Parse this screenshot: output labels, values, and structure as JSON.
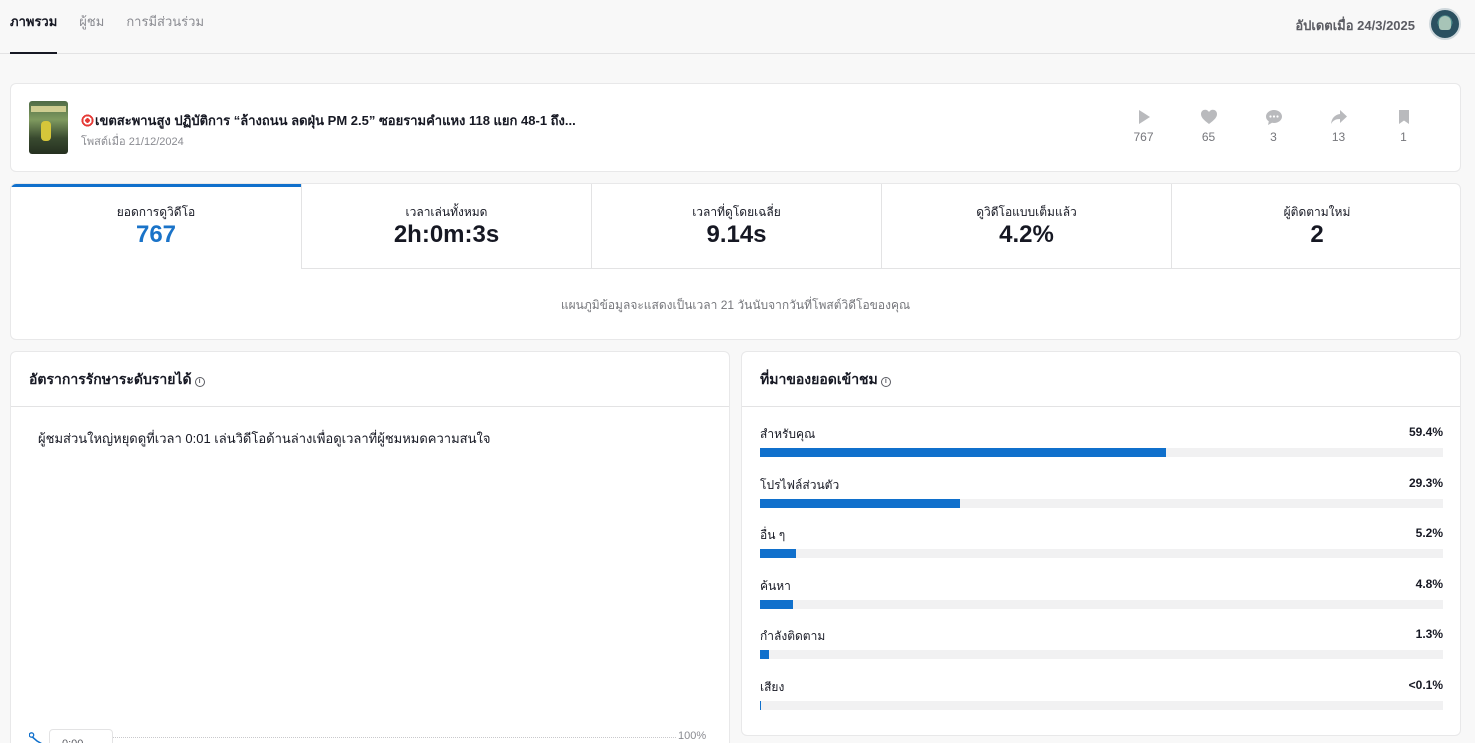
{
  "nav": {
    "tabs": [
      "ภาพรวม",
      "ผู้ชม",
      "การมีส่วนร่วม"
    ],
    "active_tab": 0,
    "updated": "อัปเดตเมื่อ 24/3/2025"
  },
  "video": {
    "title": "เขตสะพานสูง ปฏิบัติการ “ล้างถนน ลดฝุ่น PM 2.5” ซอยรามคำแหง 118 แยก 48-1 ถึง...",
    "posted": "โพสต์เมื่อ 21/12/2024",
    "stats": [
      {
        "icon": "play-icon",
        "value": "767"
      },
      {
        "icon": "heart-icon",
        "value": "65"
      },
      {
        "icon": "comment-icon",
        "value": "3"
      },
      {
        "icon": "share-icon",
        "value": "13"
      },
      {
        "icon": "bookmark-icon",
        "value": "1"
      }
    ]
  },
  "metrics": [
    {
      "label": "ยอดการดูวิดีโอ",
      "value": "767"
    },
    {
      "label": "เวลาเล่นทั้งหมด",
      "value": "2h:0m:3s"
    },
    {
      "label": "เวลาที่ดูโดยเฉลี่ย",
      "value": "9.14s"
    },
    {
      "label": "ดูวิดีโอแบบเต็มแล้ว",
      "value": "4.2%"
    },
    {
      "label": "ผู้ติดตามใหม่",
      "value": "2"
    }
  ],
  "metrics_note": "แผนภูมิข้อมูลจะแสดงเป็นเวลา 21 วันนับจากวันที่โพสต์วิดีโอของคุณ",
  "retention": {
    "title": "อัตราการรักษาระดับรายได้",
    "summary": "ผู้ชมส่วนใหญ่หยุดดูที่เวลา 0:01 เล่นวิดีโอด้านล่างเพื่อดูเวลาที่ผู้ชมหมดความสนใจ",
    "axis_max_label": "100%",
    "tooltip_time": "0:00"
  },
  "traffic": {
    "title": "ที่มาของยอดเข้าชม",
    "sources": [
      {
        "name": "สำหรับคุณ",
        "percent_label": "59.4%",
        "fraction": 0.594
      },
      {
        "name": "โปรไฟล์ส่วนตัว",
        "percent_label": "29.3%",
        "fraction": 0.293
      },
      {
        "name": "อื่น ๆ",
        "percent_label": "5.2%",
        "fraction": 0.052
      },
      {
        "name": "ค้นหา",
        "percent_label": "4.8%",
        "fraction": 0.048
      },
      {
        "name": "กำลังติดตาม",
        "percent_label": "1.3%",
        "fraction": 0.013
      },
      {
        "name": "เสียง",
        "percent_label": "<0.1%",
        "fraction": 0.0005
      }
    ]
  },
  "colors": {
    "accent": "#1070cc",
    "accent_text": "#1a73c8",
    "track": "#f1f1f2"
  }
}
